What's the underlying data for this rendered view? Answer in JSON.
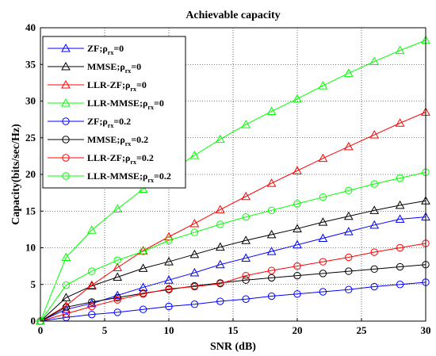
{
  "chart_data": {
    "type": "line",
    "title": "Achievable capacity",
    "xlabel": "SNR (dB)",
    "ylabel": "Capacity(bits/sec/Hz)",
    "xlim": [
      0,
      30
    ],
    "ylim": [
      0,
      40
    ],
    "xticks": [
      "0",
      "5",
      "10",
      "15",
      "20",
      "25",
      "30"
    ],
    "yticks": [
      "0",
      "5",
      "10",
      "15",
      "20",
      "25",
      "30",
      "35",
      "40"
    ],
    "grid": true,
    "legend_position": "top-left",
    "x": [
      0,
      2,
      4,
      6,
      8,
      10,
      12,
      14,
      16,
      18,
      20,
      22,
      24,
      26,
      28,
      30
    ],
    "series": [
      {
        "name": "ZF;ρ_rx=0",
        "label_main": "ZF;ρ",
        "label_sub": "rx",
        "label_tail": "=0",
        "color": "#0000ff",
        "marker": "triangle",
        "values": [
          0,
          1.6,
          2.4,
          3.5,
          4.6,
          5.6,
          6.6,
          7.7,
          8.6,
          9.5,
          10.4,
          11.3,
          12.2,
          13.1,
          13.9,
          14.2
        ]
      },
      {
        "name": "MMSE;ρ_rx=0",
        "label_main": "MMSE;ρ",
        "label_sub": "rx",
        "label_tail": "=0",
        "color": "#000000",
        "marker": "triangle",
        "values": [
          0,
          3.2,
          4.8,
          6.0,
          7.2,
          8.1,
          9.1,
          10.1,
          11.0,
          11.8,
          12.6,
          13.5,
          14.3,
          15.1,
          15.8,
          16.4
        ]
      },
      {
        "name": "LLR-ZF;ρ_rx=0",
        "label_main": "LLR-ZF;ρ",
        "label_sub": "rx",
        "label_tail": "=0",
        "color": "#ff0000",
        "marker": "triangle",
        "values": [
          0,
          2.1,
          4.9,
          7.3,
          9.6,
          11.5,
          13.3,
          15.2,
          17.0,
          18.8,
          20.5,
          22.2,
          23.8,
          25.4,
          27.0,
          28.5
        ]
      },
      {
        "name": "LLR-MMSE;ρ_rx=0",
        "label_main": "LLR-MMSE;ρ",
        "label_sub": "rx",
        "label_tail": "=0",
        "color": "#00ff00",
        "marker": "triangle",
        "values": [
          0,
          8.7,
          12.4,
          15.3,
          18.0,
          20.3,
          22.6,
          24.8,
          26.8,
          28.6,
          30.3,
          32.1,
          33.8,
          35.4,
          36.9,
          38.3
        ]
      },
      {
        "name": "ZF;ρ_rx=0.2",
        "label_main": "ZF;ρ",
        "label_sub": "rx",
        "label_tail": "=0.2",
        "color": "#0000ff",
        "marker": "circle",
        "values": [
          0,
          0.5,
          0.9,
          1.2,
          1.6,
          2.0,
          2.3,
          2.7,
          3.0,
          3.4,
          3.7,
          4.0,
          4.3,
          4.7,
          5.0,
          5.3
        ]
      },
      {
        "name": "MMSE;ρ_rx=0.2",
        "label_main": "MMSE;ρ",
        "label_sub": "rx",
        "label_tail": "=0.2",
        "color": "#000000",
        "marker": "circle",
        "values": [
          0,
          1.9,
          2.6,
          3.2,
          3.8,
          4.3,
          4.8,
          5.2,
          5.6,
          5.9,
          6.2,
          6.5,
          6.8,
          7.1,
          7.4,
          7.7
        ]
      },
      {
        "name": "LLR-ZF;ρ_rx=0.2",
        "label_main": "LLR-ZF;ρ",
        "label_sub": "rx",
        "label_tail": "=0.2",
        "color": "#ff0000",
        "marker": "circle",
        "values": [
          0,
          1.0,
          2.0,
          2.9,
          3.7,
          4.4,
          4.7,
          5.1,
          6.2,
          6.9,
          7.5,
          8.1,
          8.7,
          9.4,
          10.0,
          10.6
        ]
      },
      {
        "name": "LLR-MMSE;ρ_rx=0.2",
        "label_main": "LLR-MMSE;ρ",
        "label_sub": "rx",
        "label_tail": "=0.2",
        "color": "#00ff00",
        "marker": "circle",
        "values": [
          0,
          4.9,
          6.8,
          8.3,
          9.5,
          11.0,
          12.1,
          13.2,
          14.2,
          15.1,
          16.0,
          16.9,
          17.8,
          18.7,
          19.5,
          20.3
        ]
      }
    ]
  }
}
